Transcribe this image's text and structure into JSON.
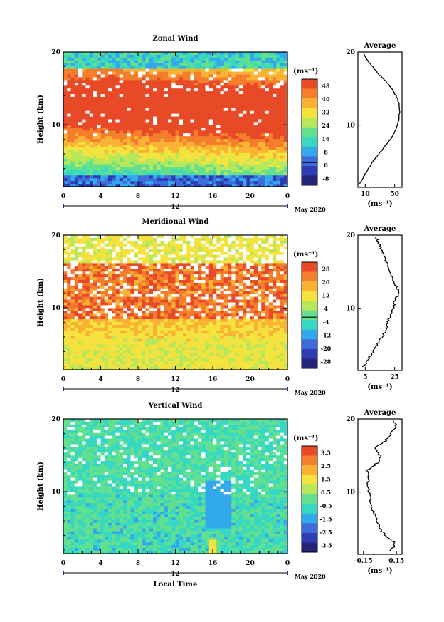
{
  "date_label": "May 2020",
  "day_label": "12",
  "xlabel_bottom": "Local Time",
  "chart_data": [
    {
      "type": "heatmap",
      "title": "Zonal Wind",
      "ylabel": "Height (km)",
      "xlabel": "",
      "x_ticks": [
        "0",
        "4",
        "8",
        "12",
        "16",
        "20",
        "0"
      ],
      "y_ticks": [
        "20",
        "10"
      ],
      "ylim": [
        1.5,
        20
      ],
      "xlim": [
        0,
        24
      ],
      "colorbar": {
        "unit": "(ms⁻¹)",
        "labels": [
          "48",
          "40",
          "32",
          "24",
          "16",
          "8",
          "0",
          "-8"
        ],
        "zero_line_level": "0"
      },
      "colors": [
        "#e84a28",
        "#f47e2c",
        "#f9b233",
        "#f4e33f",
        "#b7e75a",
        "#63e08e",
        "#36d8c4",
        "#33a9ec",
        "#3d6ddd",
        "#2e3db5",
        "#26247a"
      ],
      "profile": {
        "title": "Average",
        "x_ticks": [
          "10",
          "50"
        ],
        "xlabel": "(ms⁻¹)",
        "y_ticks": [
          "20",
          "10"
        ],
        "xlim": [
          0,
          60
        ],
        "height_km": [
          2,
          3,
          4,
          5,
          6,
          7,
          8,
          9,
          10,
          11,
          12,
          13,
          14,
          15,
          16,
          17,
          18,
          19,
          19.8
        ],
        "values": [
          3,
          8,
          14,
          20,
          28,
          36,
          44,
          50,
          54,
          56,
          57,
          56,
          52,
          46,
          38,
          28,
          20,
          12,
          8
        ]
      }
    },
    {
      "type": "heatmap",
      "title": "Meridional Wind",
      "ylabel": "Height (km)",
      "xlabel": "",
      "x_ticks": [
        "0",
        "4",
        "8",
        "12",
        "16",
        "20",
        "0"
      ],
      "y_ticks": [
        "20",
        "10"
      ],
      "ylim": [
        1.5,
        20
      ],
      "xlim": [
        0,
        24
      ],
      "colorbar": {
        "unit": "(ms⁻¹)",
        "labels": [
          "28",
          "20",
          "12",
          "4",
          "-4",
          "-12",
          "-20",
          "-28"
        ],
        "zero_line_level": "0"
      },
      "colors": [
        "#e84a28",
        "#f47e2c",
        "#f9b233",
        "#f4e33f",
        "#b7e75a",
        "#63e08e",
        "#36d8c4",
        "#33a9ec",
        "#3d6ddd",
        "#2e3db5",
        "#26247a"
      ],
      "profile": {
        "title": "Average",
        "x_ticks": [
          "5",
          "25"
        ],
        "xlabel": "(ms⁻¹)",
        "y_ticks": [
          "20",
          "10"
        ],
        "xlim": [
          0,
          30
        ],
        "height_km": [
          2,
          3,
          4,
          5,
          6,
          7,
          8,
          9,
          10,
          11,
          12,
          13,
          14,
          15,
          16,
          17,
          18,
          19,
          19.8
        ],
        "values": [
          4,
          7,
          10,
          13,
          16,
          19,
          20,
          22,
          24,
          25,
          28,
          26,
          24,
          22,
          20,
          18,
          16,
          14,
          12
        ]
      }
    },
    {
      "type": "heatmap",
      "title": "Vertical Wind",
      "ylabel": "Height (km)",
      "xlabel": "Local Time",
      "x_ticks": [
        "0",
        "4",
        "8",
        "12",
        "16",
        "20",
        "0"
      ],
      "y_ticks": [
        "20",
        "10"
      ],
      "ylim": [
        1.5,
        20
      ],
      "xlim": [
        0,
        24
      ],
      "colorbar": {
        "unit": "(ms⁻¹)",
        "labels": [
          "3.5",
          "2.5",
          "1.5",
          "0.5",
          "-0.5",
          "-1.5",
          "-2.5",
          "-3.5"
        ],
        "zero_line_level": null
      },
      "colors": [
        "#e84a28",
        "#f47e2c",
        "#f9b233",
        "#f4e33f",
        "#b7e75a",
        "#63e08e",
        "#36d8c4",
        "#33a9ec",
        "#3d6ddd",
        "#2e3db5",
        "#26247a"
      ],
      "profile": {
        "title": "Average",
        "x_ticks": [
          "-0.15",
          "0.15"
        ],
        "xlabel": "(ms⁻¹)",
        "y_ticks": [
          "20",
          "10"
        ],
        "xlim": [
          -0.2,
          0.2
        ],
        "height_km": [
          2,
          3,
          4,
          5,
          6,
          7,
          8,
          9,
          10,
          11,
          12,
          13,
          14,
          15,
          16,
          17,
          18,
          19,
          19.8
        ],
        "values": [
          0.1,
          0.14,
          0.05,
          0.0,
          -0.02,
          -0.05,
          -0.08,
          -0.09,
          -0.1,
          -0.12,
          -0.1,
          -0.12,
          -0.02,
          0.0,
          -0.05,
          0.05,
          0.1,
          0.15,
          0.12
        ]
      }
    }
  ]
}
